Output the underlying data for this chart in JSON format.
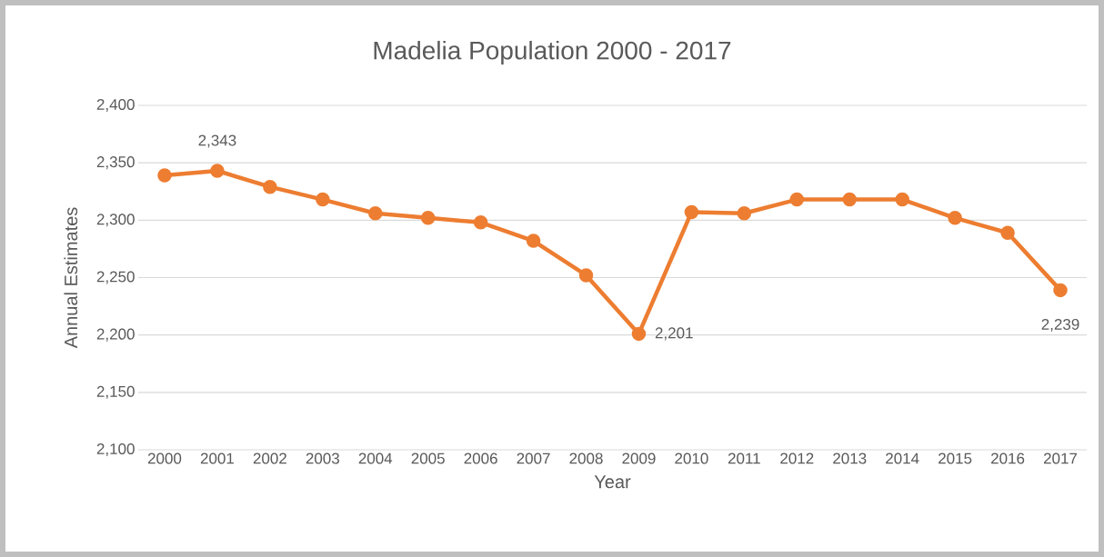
{
  "chart_data": {
    "type": "line",
    "title": "Madelia Population 2000 - 2017",
    "xlabel": "Year",
    "ylabel": "Annual Estimates",
    "categories": [
      "2000",
      "2001",
      "2002",
      "2003",
      "2004",
      "2005",
      "2006",
      "2007",
      "2008",
      "2009",
      "2010",
      "2011",
      "2012",
      "2013",
      "2014",
      "2015",
      "2016",
      "2017"
    ],
    "values": [
      2339,
      2343,
      2329,
      2318,
      2306,
      2302,
      2298,
      2282,
      2252,
      2201,
      2307,
      2306,
      2318,
      2318,
      2318,
      2302,
      2289,
      2239
    ],
    "value_labels": [
      null,
      "2,343",
      null,
      null,
      null,
      null,
      null,
      null,
      null,
      "2,201",
      null,
      null,
      null,
      null,
      null,
      null,
      null,
      "2,239"
    ],
    "color": "#ed7d31",
    "marker": "circle",
    "line_style": "solid",
    "grid": "y",
    "ylim": [
      2100,
      2400
    ],
    "yticks": [
      {
        "value": 2100,
        "label": "2,100"
      },
      {
        "value": 2150,
        "label": "2,150"
      },
      {
        "value": 2200,
        "label": "2,200"
      },
      {
        "value": 2250,
        "label": "2,250"
      },
      {
        "value": 2300,
        "label": "2,300"
      },
      {
        "value": 2350,
        "label": "2,350"
      },
      {
        "value": 2400,
        "label": "2,400"
      }
    ]
  }
}
